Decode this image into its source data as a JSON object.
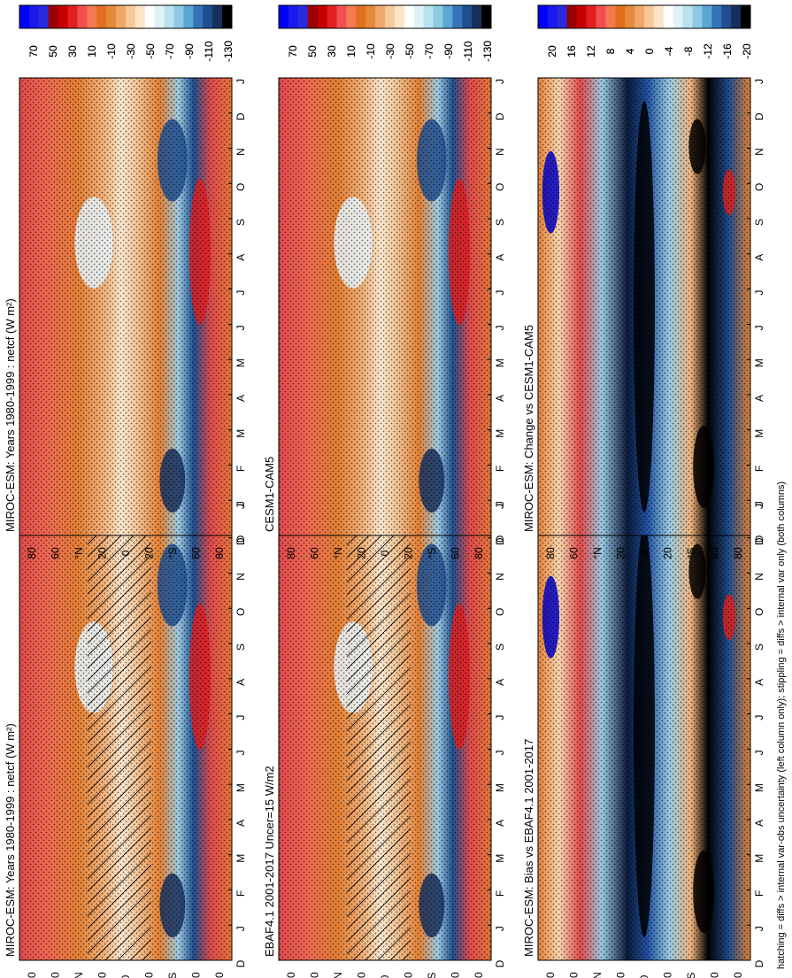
{
  "figure": {
    "footnote": "hatching = diffs > internal var-obs uncertainty (left column only); stippling = diffs > internal var only (both columns)"
  },
  "months": [
    "J",
    "F",
    "M",
    "A",
    "M",
    "J",
    "J",
    "A",
    "S",
    "O",
    "N",
    "D",
    "J"
  ],
  "lat_ticks": [
    "80",
    "60",
    "°N",
    "20",
    "0",
    "20",
    "°S",
    "60",
    "80"
  ],
  "chart_data": [
    {
      "type": "heatmap",
      "title": "MIROC-ESM: Years 1980-1999 : netcf (W m²)",
      "xlabel": "",
      "ylabel": "",
      "x": [
        "D",
        "J",
        "F",
        "M",
        "A",
        "M",
        "J",
        "J",
        "A",
        "S",
        "O",
        "N",
        "D",
        "J"
      ],
      "y_labels": [
        "80",
        "60",
        "°N",
        "20",
        "0",
        "20",
        "°S",
        "60",
        "80"
      ],
      "colorbar_ticks": [
        "70",
        "50",
        "30",
        "10",
        "-10",
        "-30",
        "-50",
        "-70",
        "-90",
        "-110",
        "-130"
      ],
      "hatching": true
    },
    {
      "type": "heatmap",
      "title": "EBAF4.1 2001-2017 Uncer=15 W/m2",
      "xlabel": "",
      "ylabel": "",
      "x": [
        "D",
        "J",
        "F",
        "M",
        "A",
        "M",
        "J",
        "J",
        "A",
        "S",
        "O",
        "N",
        "D",
        "J"
      ],
      "y_labels": [
        "80",
        "60",
        "°N",
        "20",
        "0",
        "20",
        "°S",
        "60",
        "80"
      ],
      "colorbar_ticks": [
        "70",
        "50",
        "30",
        "10",
        "-10",
        "-30",
        "-50",
        "-70",
        "-90",
        "-110",
        "-130"
      ],
      "hatching": true
    },
    {
      "type": "heatmap",
      "title": "MIROC-ESM: Bias vs EBAF4.1 2001-2017",
      "xlabel": "",
      "ylabel": "",
      "x": [
        "D",
        "J",
        "F",
        "M",
        "A",
        "M",
        "J",
        "J",
        "A",
        "S",
        "O",
        "N",
        "D",
        "J"
      ],
      "y_labels": [
        "80",
        "60",
        "°N",
        "20",
        "0",
        "20",
        "°S",
        "60",
        "80"
      ],
      "colorbar_ticks": [
        "20",
        "16",
        "12",
        "8",
        "4",
        "0",
        "-4",
        "-8",
        "-12",
        "-16",
        "-20"
      ],
      "stippling": true
    },
    {
      "type": "heatmap",
      "title": "MIROC-ESM: Years 1980-1999 : netcf (W m²)",
      "xlabel": "",
      "ylabel": "",
      "x": [
        "D",
        "J",
        "F",
        "M",
        "A",
        "M",
        "J",
        "J",
        "A",
        "S",
        "O",
        "N",
        "D",
        "J"
      ],
      "y_labels": [
        "80",
        "60",
        "°N",
        "20",
        "0",
        "20",
        "°S",
        "60",
        "80"
      ],
      "colorbar_ticks": [
        "70",
        "50",
        "30",
        "10",
        "-10",
        "-30",
        "-50",
        "-70",
        "-90",
        "-110",
        "-130"
      ],
      "stippling": true
    },
    {
      "type": "heatmap",
      "title": "CESM1-CAM5",
      "xlabel": "",
      "ylabel": "",
      "x": [
        "D",
        "J",
        "F",
        "M",
        "A",
        "M",
        "J",
        "J",
        "A",
        "S",
        "O",
        "N",
        "D",
        "J"
      ],
      "y_labels": [
        "80",
        "60",
        "°N",
        "20",
        "0",
        "20",
        "°S",
        "60",
        "80"
      ],
      "colorbar_ticks": [
        "70",
        "50",
        "30",
        "10",
        "-10",
        "-30",
        "-50",
        "-70",
        "-90",
        "-110",
        "-130"
      ],
      "stippling": true
    },
    {
      "type": "heatmap",
      "title": "MIROC-ESM: Change vs CESM1-CAM5",
      "xlabel": "",
      "ylabel": "",
      "x": [
        "D",
        "J",
        "F",
        "M",
        "A",
        "M",
        "J",
        "J",
        "A",
        "S",
        "O",
        "N",
        "D",
        "J"
      ],
      "y_labels": [
        "80",
        "60",
        "°N",
        "20",
        "0",
        "20",
        "°S",
        "60",
        "80"
      ],
      "colorbar_ticks": [
        "20",
        "16",
        "12",
        "8",
        "4",
        "0",
        "-4",
        "-8",
        "-12",
        "-16",
        "-20"
      ],
      "stippling": true
    }
  ]
}
